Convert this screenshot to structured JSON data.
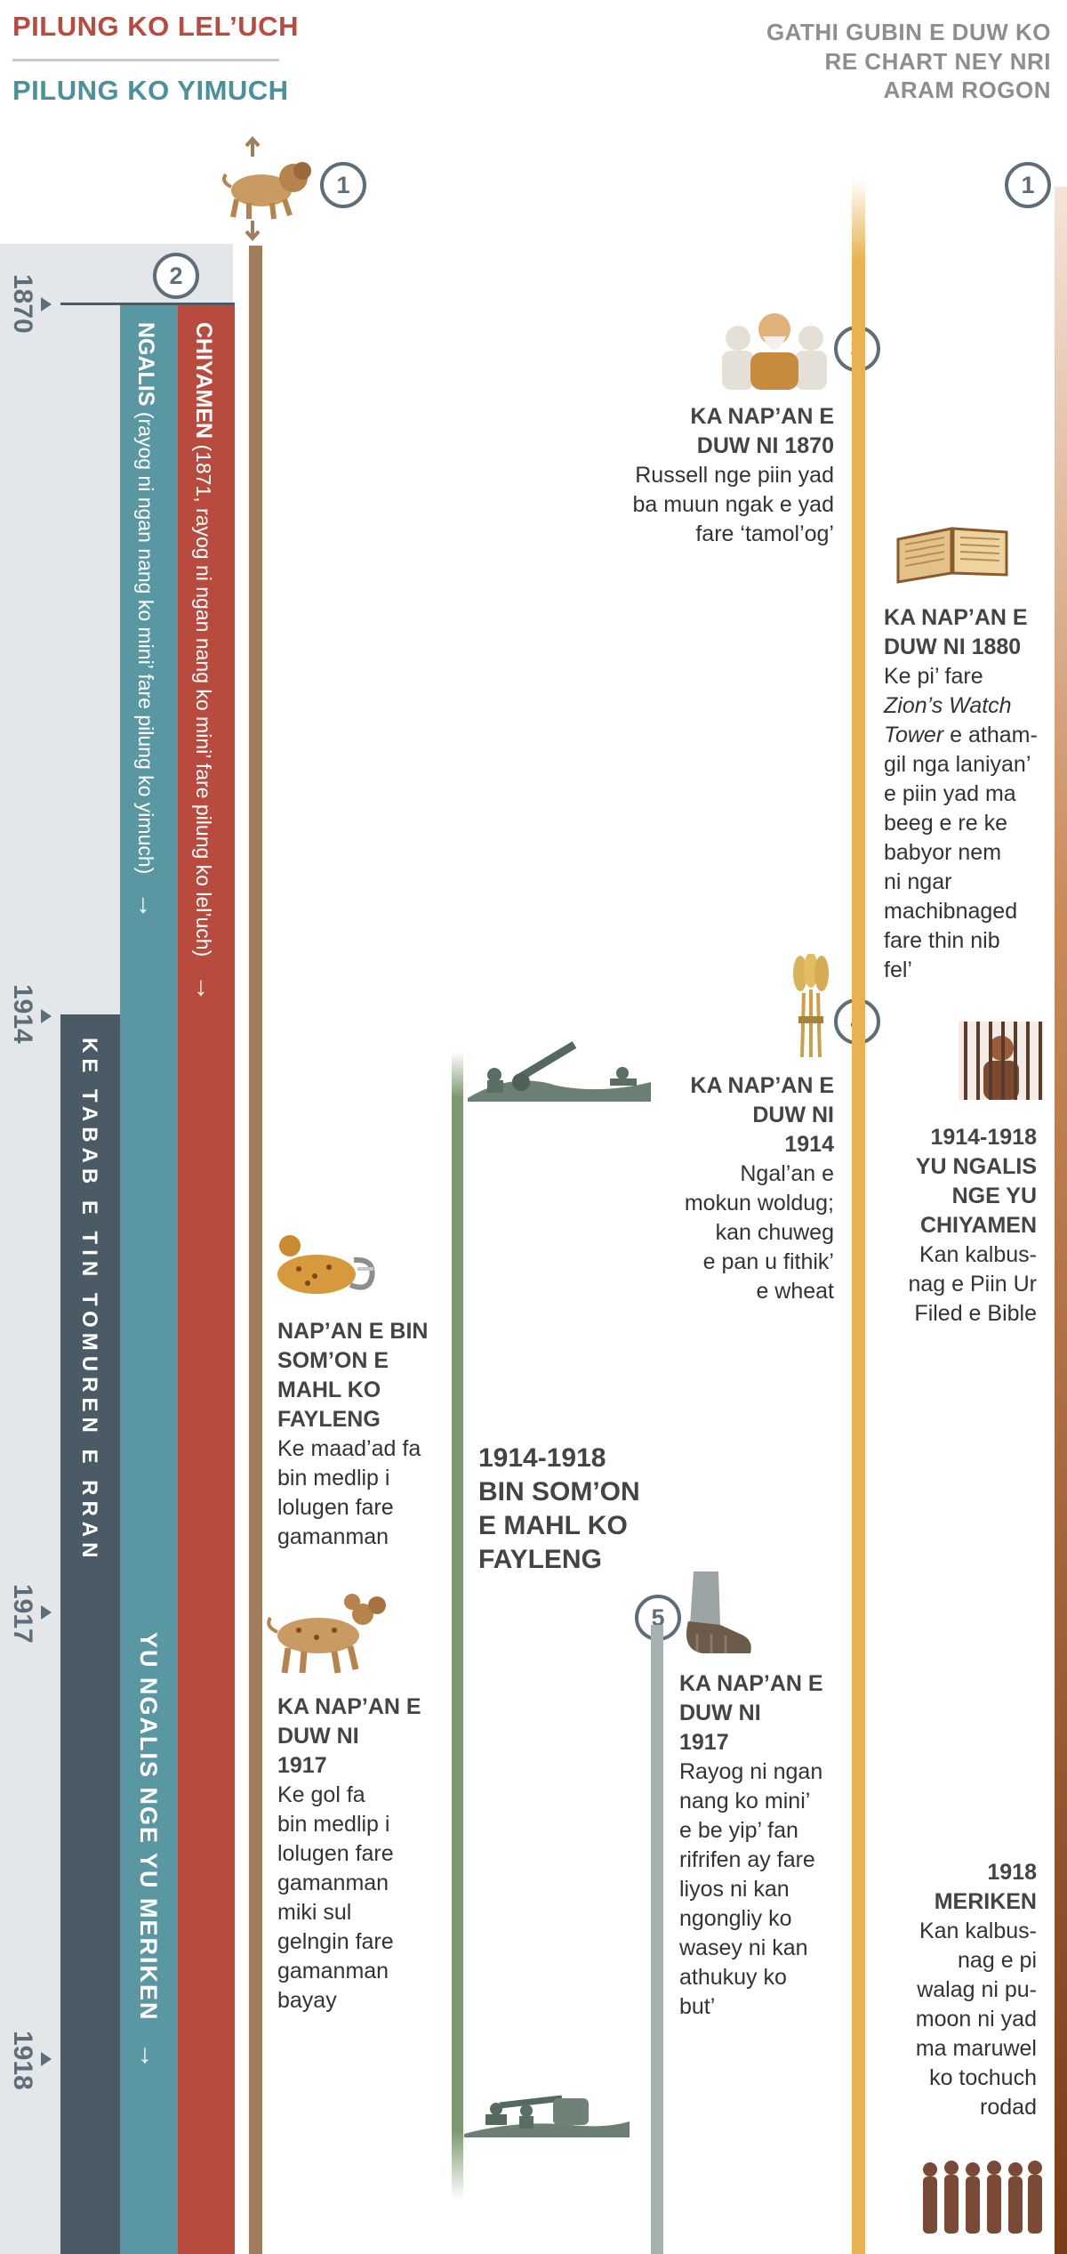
{
  "header": {
    "left_title_1": "PILUNG KO LEL’UCH",
    "left_title_2": "PILUNG KO YIMUCH",
    "right_title_line1": "GATHI GUBIN E DUW KO",
    "right_title_line2": "RE CHART NEY NRI",
    "right_title_line3": "ARAM ROGON"
  },
  "years": [
    "1870",
    "1914",
    "1917",
    "1918"
  ],
  "markers": [
    "1",
    "1",
    "2",
    "3",
    "4",
    "5"
  ],
  "bars": {
    "red_title": "CHIYAMEN",
    "red_desc": "(1871, rayog ni ngan nang ko mini’ fare pilung ko lel’uch)",
    "teal_title": "NGALIS",
    "teal_desc": "(rayog ni ngan nang ko mini’ fare pilung ko yimuch)",
    "slate_label": "KE TABAB E TIN TOMUREN E RRAN",
    "teal_lower_label": "YU NGALIS NGE YU MERIKEN",
    "arrow": "→"
  },
  "events": {
    "e1870": {
      "heading_l1": "KA NAP’AN E",
      "heading_l2": "DUW NI 1870",
      "body": [
        "Russell nge piin yad",
        "ba muun ngak e yad",
        "fare ‘tamol’og’"
      ]
    },
    "e1880": {
      "heading_l1": "KA NAP’AN E",
      "heading_l2": "DUW NI 1880",
      "body_l1": "Ke pi’ fare",
      "body_italic": "Zion’s Watch",
      "body_italic2": "Tower",
      "body_l3": " e atham-",
      "body_rest": [
        "gil nga laniyan’",
        "e piin yad ma",
        "beeg e re ke",
        "babyor nem",
        "ni ngar",
        "machibnaged",
        "fare thin nib",
        "fel’"
      ]
    },
    "e1914": {
      "heading": [
        "KA NAP’AN E",
        "DUW NI",
        "1914"
      ],
      "body": [
        "Ngal’an e",
        "mokun woldug;",
        "kan chuweg",
        "e pan u fithik’",
        "e wheat"
      ]
    },
    "e1914_1918_prison": {
      "heading": [
        "1914-1918",
        "YU NGALIS",
        "NGE YU",
        "CHIYAMEN"
      ],
      "body": [
        "Kan kalbus-",
        "nag e Piin Ur",
        "Filed e Bible"
      ]
    },
    "beast_wound": {
      "heading": [
        "NAP’AN E BIN",
        "SOM’ON E",
        "MAHL KO",
        "FAYLENG"
      ],
      "body": [
        "Ke maad’ad fa",
        "bin medlip i",
        "lolugen fare",
        "gamanman"
      ]
    },
    "war": {
      "heading": [
        "1914-1918",
        "BIN SOM’ON",
        "E MAHL KO",
        "FAYLENG"
      ]
    },
    "e1917_beast": {
      "heading": [
        "KA NAP’AN E",
        "DUW NI",
        "1917"
      ],
      "body": [
        "Ke gol fa",
        "bin medlip i",
        "lolugen fare",
        "gamanman",
        "miki sul",
        "gelngin fare",
        "gamanman",
        "bayay"
      ]
    },
    "e1917_feet": {
      "heading": [
        "KA NAP’AN E",
        "DUW NI",
        "1917"
      ],
      "body": [
        "Rayog ni ngan",
        "nang ko mini’",
        "e be yip’ fan",
        "rifrifen ay fare",
        "liyos ni kan",
        "ngongliy ko",
        "wasey ni kan",
        "athukuy ko",
        "but’"
      ]
    },
    "e1918": {
      "heading": [
        "1918",
        "MERIKEN"
      ],
      "body": [
        "Kan kalbus-",
        "nag e pi",
        "walag ni pu-",
        "moon ni yad",
        "ma maruwel",
        "ko tochuch",
        "rodad"
      ]
    }
  },
  "colors": {
    "red": "#b94a3e",
    "teal": "#5998a2",
    "slate": "#4a5b66",
    "brown_line": "#a27d5d",
    "green_line": "#7d9970",
    "gold_line": "#e9b250",
    "copper_line": "#7b3b16",
    "panel": "#e4e7e9"
  },
  "icons": [
    "lion-beast-icon",
    "russell-portrait-icon",
    "open-bible-icon",
    "wheat-sheaf-icon",
    "prisoner-icon",
    "wounded-beast-icon",
    "artillery-icon",
    "two-horned-beast-icon",
    "iron-clay-feet-icon",
    "soldiers-icon",
    "prisoners-group-icon"
  ]
}
